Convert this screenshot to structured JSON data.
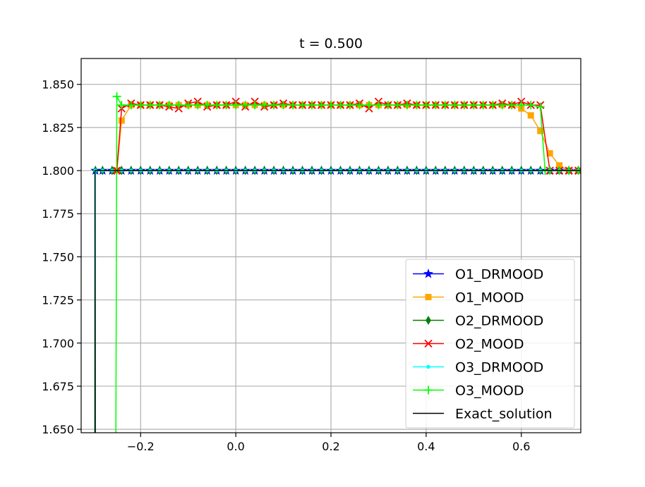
{
  "chart_data": {
    "type": "line",
    "title": "t = 0.500",
    "xlabel": "",
    "ylabel": "",
    "xlim": [
      -0.325,
      0.725
    ],
    "ylim": [
      1.648,
      1.865
    ],
    "xticks": [
      -0.2,
      0.0,
      0.2,
      0.4,
      0.6
    ],
    "xtick_labels": [
      "−0.2",
      "0.0",
      "0.2",
      "0.4",
      "0.6"
    ],
    "yticks": [
      1.65,
      1.675,
      1.7,
      1.725,
      1.75,
      1.775,
      1.8,
      1.825,
      1.85
    ],
    "ytick_labels": [
      "1.650",
      "1.675",
      "1.700",
      "1.725",
      "1.750",
      "1.775",
      "1.800",
      "1.825",
      "1.850"
    ],
    "grid": true,
    "legend_position": "lower-right",
    "series": [
      {
        "name": "O1_DRMOOD",
        "color": "#0000ff",
        "marker": "star",
        "x": [
          -0.295,
          -0.295,
          -0.28,
          -0.26,
          -0.24,
          -0.22,
          -0.2,
          -0.18,
          -0.16,
          -0.14,
          -0.12,
          -0.1,
          -0.08,
          -0.06,
          -0.04,
          -0.02,
          0.0,
          0.02,
          0.04,
          0.06,
          0.08,
          0.1,
          0.12,
          0.14,
          0.16,
          0.18,
          0.2,
          0.22,
          0.24,
          0.26,
          0.28,
          0.3,
          0.32,
          0.34,
          0.36,
          0.38,
          0.4,
          0.42,
          0.44,
          0.46,
          0.48,
          0.5,
          0.52,
          0.54,
          0.56,
          0.58,
          0.6,
          0.62,
          0.64,
          0.66,
          0.68,
          0.7,
          0.72
        ],
        "y": [
          1.648,
          1.8,
          1.8,
          1.8,
          1.8,
          1.8,
          1.8,
          1.8,
          1.8,
          1.8,
          1.8,
          1.8,
          1.8,
          1.8,
          1.8,
          1.8,
          1.8,
          1.8,
          1.8,
          1.8,
          1.8,
          1.8,
          1.8,
          1.8,
          1.8,
          1.8,
          1.8,
          1.8,
          1.8,
          1.8,
          1.8,
          1.8,
          1.8,
          1.8,
          1.8,
          1.8,
          1.8,
          1.8,
          1.8,
          1.8,
          1.8,
          1.8,
          1.8,
          1.8,
          1.8,
          1.8,
          1.8,
          1.8,
          1.8,
          1.8,
          1.8,
          1.8,
          1.8
        ]
      },
      {
        "name": "O1_MOOD",
        "color": "#ffa500",
        "marker": "square",
        "x": [
          -0.25,
          -0.24,
          -0.22,
          -0.2,
          -0.18,
          -0.16,
          -0.14,
          -0.12,
          -0.1,
          -0.08,
          -0.06,
          -0.04,
          -0.02,
          0.0,
          0.02,
          0.04,
          0.06,
          0.08,
          0.1,
          0.12,
          0.14,
          0.16,
          0.18,
          0.2,
          0.22,
          0.24,
          0.26,
          0.28,
          0.3,
          0.32,
          0.34,
          0.36,
          0.38,
          0.4,
          0.42,
          0.44,
          0.46,
          0.48,
          0.5,
          0.52,
          0.54,
          0.56,
          0.58,
          0.6,
          0.62,
          0.64,
          0.66,
          0.68,
          0.7,
          0.72
        ],
        "y": [
          1.8,
          1.829,
          1.838,
          1.838,
          1.838,
          1.838,
          1.838,
          1.838,
          1.838,
          1.838,
          1.838,
          1.838,
          1.838,
          1.838,
          1.838,
          1.838,
          1.838,
          1.838,
          1.838,
          1.838,
          1.838,
          1.838,
          1.838,
          1.838,
          1.838,
          1.838,
          1.838,
          1.838,
          1.838,
          1.838,
          1.838,
          1.838,
          1.838,
          1.838,
          1.838,
          1.838,
          1.838,
          1.838,
          1.838,
          1.838,
          1.838,
          1.838,
          1.838,
          1.836,
          1.832,
          1.823,
          1.81,
          1.803,
          1.8,
          1.8
        ]
      },
      {
        "name": "O2_DRMOOD",
        "color": "#008000",
        "marker": "thin_diamond",
        "x": [
          -0.295,
          -0.295,
          -0.28,
          -0.26,
          -0.24,
          -0.22,
          -0.2,
          -0.18,
          -0.16,
          -0.14,
          -0.12,
          -0.1,
          -0.08,
          -0.06,
          -0.04,
          -0.02,
          0.0,
          0.02,
          0.04,
          0.06,
          0.08,
          0.1,
          0.12,
          0.14,
          0.16,
          0.18,
          0.2,
          0.22,
          0.24,
          0.26,
          0.28,
          0.3,
          0.32,
          0.34,
          0.36,
          0.38,
          0.4,
          0.42,
          0.44,
          0.46,
          0.48,
          0.5,
          0.52,
          0.54,
          0.56,
          0.58,
          0.6,
          0.62,
          0.64,
          0.66,
          0.68,
          0.7,
          0.72
        ],
        "y": [
          1.648,
          1.8,
          1.8,
          1.8,
          1.8,
          1.8,
          1.8,
          1.8,
          1.8,
          1.8,
          1.8,
          1.8,
          1.8,
          1.8,
          1.8,
          1.8,
          1.8,
          1.8,
          1.8,
          1.8,
          1.8,
          1.8,
          1.8,
          1.8,
          1.8,
          1.8,
          1.8,
          1.8,
          1.8,
          1.8,
          1.8,
          1.8,
          1.8,
          1.8,
          1.8,
          1.8,
          1.8,
          1.8,
          1.8,
          1.8,
          1.8,
          1.8,
          1.8,
          1.8,
          1.8,
          1.8,
          1.8,
          1.8,
          1.8,
          1.8,
          1.8,
          1.8,
          1.8
        ]
      },
      {
        "name": "O2_MOOD",
        "color": "#ff0000",
        "marker": "x",
        "x": [
          -0.25,
          -0.24,
          -0.22,
          -0.2,
          -0.18,
          -0.16,
          -0.14,
          -0.12,
          -0.1,
          -0.08,
          -0.06,
          -0.04,
          -0.02,
          0.0,
          0.02,
          0.04,
          0.06,
          0.08,
          0.1,
          0.12,
          0.14,
          0.16,
          0.18,
          0.2,
          0.22,
          0.24,
          0.26,
          0.28,
          0.3,
          0.32,
          0.34,
          0.36,
          0.38,
          0.4,
          0.42,
          0.44,
          0.46,
          0.48,
          0.5,
          0.52,
          0.54,
          0.56,
          0.58,
          0.6,
          0.62,
          0.64,
          0.66,
          0.68,
          0.7,
          0.72
        ],
        "y": [
          1.8,
          1.836,
          1.839,
          1.838,
          1.838,
          1.838,
          1.837,
          1.836,
          1.839,
          1.84,
          1.837,
          1.838,
          1.838,
          1.84,
          1.837,
          1.84,
          1.837,
          1.838,
          1.839,
          1.838,
          1.838,
          1.838,
          1.838,
          1.838,
          1.838,
          1.838,
          1.839,
          1.836,
          1.84,
          1.838,
          1.838,
          1.839,
          1.838,
          1.838,
          1.838,
          1.838,
          1.838,
          1.838,
          1.838,
          1.838,
          1.838,
          1.839,
          1.838,
          1.84,
          1.838,
          1.838,
          1.8,
          1.8,
          1.8,
          1.8
        ]
      },
      {
        "name": "O3_DRMOOD",
        "color": "#00ffff",
        "marker": "point",
        "x": [
          -0.296,
          -0.295,
          -0.28,
          -0.26,
          -0.24,
          -0.22,
          -0.2,
          -0.18,
          -0.16,
          -0.14,
          -0.12,
          -0.1,
          -0.08,
          -0.06,
          -0.04,
          -0.02,
          0.0,
          0.02,
          0.04,
          0.06,
          0.08,
          0.1,
          0.12,
          0.14,
          0.16,
          0.18,
          0.2,
          0.22,
          0.24,
          0.26,
          0.28,
          0.3,
          0.32,
          0.34,
          0.36,
          0.38,
          0.4,
          0.42,
          0.44,
          0.46,
          0.48,
          0.5,
          0.52,
          0.54,
          0.56,
          0.58,
          0.6,
          0.62,
          0.64,
          0.66,
          0.68,
          0.7,
          0.72
        ],
        "y": [
          1.648,
          1.8,
          1.8,
          1.8,
          1.8,
          1.8,
          1.8,
          1.8,
          1.8,
          1.8,
          1.8,
          1.8,
          1.8,
          1.8,
          1.8,
          1.8,
          1.8,
          1.8,
          1.8,
          1.8,
          1.8,
          1.8,
          1.8,
          1.8,
          1.8,
          1.8,
          1.8,
          1.8,
          1.8,
          1.8,
          1.8,
          1.8,
          1.8,
          1.8,
          1.8,
          1.8,
          1.8,
          1.8,
          1.8,
          1.8,
          1.8,
          1.8,
          1.8,
          1.8,
          1.8,
          1.8,
          1.8,
          1.8,
          1.8,
          1.8,
          1.8,
          1.8,
          1.8
        ]
      },
      {
        "name": "O3_MOOD",
        "color": "#00ff00",
        "marker": "plus",
        "x": [
          -0.252,
          -0.25,
          -0.24,
          -0.22,
          -0.2,
          -0.18,
          -0.16,
          -0.14,
          -0.12,
          -0.1,
          -0.08,
          -0.06,
          -0.04,
          -0.02,
          0.0,
          0.02,
          0.04,
          0.06,
          0.08,
          0.1,
          0.12,
          0.14,
          0.16,
          0.18,
          0.2,
          0.22,
          0.24,
          0.26,
          0.28,
          0.3,
          0.32,
          0.34,
          0.36,
          0.38,
          0.4,
          0.42,
          0.44,
          0.46,
          0.48,
          0.5,
          0.52,
          0.54,
          0.56,
          0.58,
          0.6,
          0.62,
          0.64,
          0.65,
          0.66,
          0.68,
          0.7,
          0.72
        ],
        "y": [
          1.648,
          1.843,
          1.838,
          1.838,
          1.838,
          1.838,
          1.838,
          1.838,
          1.838,
          1.838,
          1.838,
          1.838,
          1.838,
          1.838,
          1.838,
          1.838,
          1.838,
          1.838,
          1.838,
          1.838,
          1.838,
          1.838,
          1.838,
          1.838,
          1.838,
          1.838,
          1.838,
          1.838,
          1.838,
          1.838,
          1.838,
          1.838,
          1.838,
          1.838,
          1.838,
          1.838,
          1.838,
          1.838,
          1.838,
          1.838,
          1.838,
          1.838,
          1.838,
          1.838,
          1.838,
          1.838,
          1.837,
          1.8,
          1.8,
          1.8,
          1.8,
          1.8
        ]
      },
      {
        "name": "Exact_solution",
        "color": "#000000",
        "marker": "none",
        "x": [
          -0.296,
          -0.296,
          0.725
        ],
        "y": [
          1.648,
          1.8,
          1.8
        ]
      }
    ]
  }
}
